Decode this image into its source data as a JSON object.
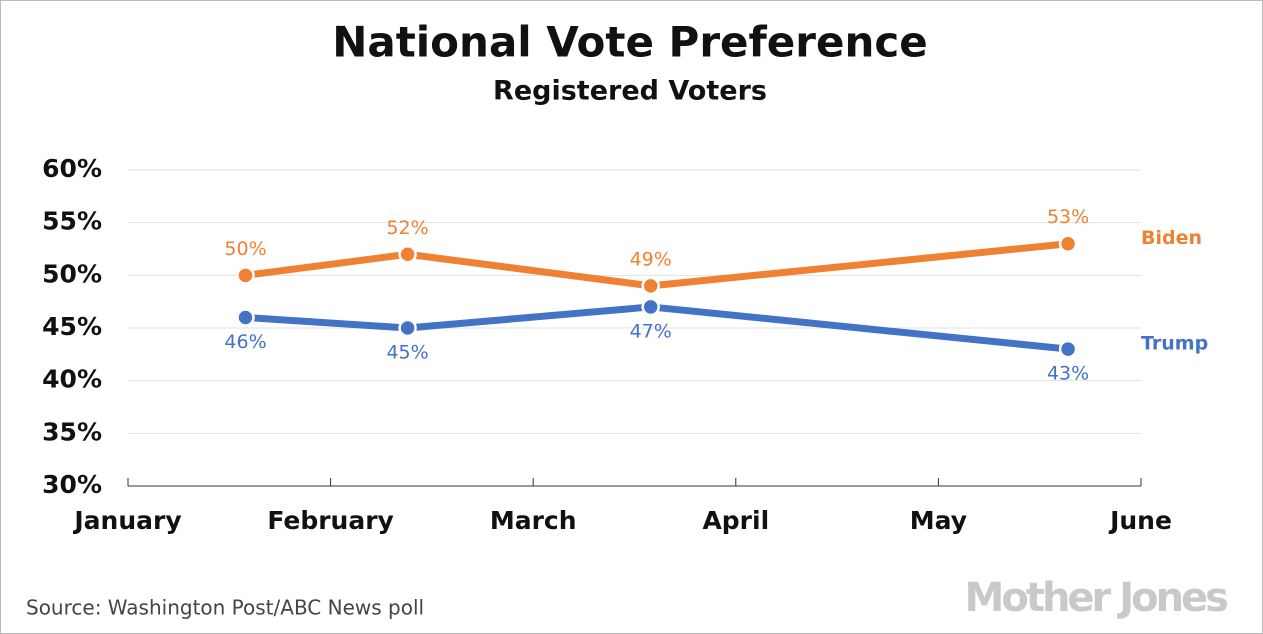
{
  "chart_data": {
    "type": "line",
    "title": "National Vote Preference",
    "subtitle": "Registered Voters",
    "x": [
      0.58,
      1.38,
      2.58,
      4.64
    ],
    "xlim": [
      0,
      5
    ],
    "xticks": [
      {
        "value": 0,
        "label": "January"
      },
      {
        "value": 1,
        "label": "February"
      },
      {
        "value": 2,
        "label": "March"
      },
      {
        "value": 3,
        "label": "April"
      },
      {
        "value": 4,
        "label": "May"
      },
      {
        "value": 5,
        "label": "June"
      }
    ],
    "ylim": [
      30,
      60
    ],
    "yticks": [
      {
        "value": 30,
        "label": "30%"
      },
      {
        "value": 35,
        "label": "35%"
      },
      {
        "value": 40,
        "label": "40%"
      },
      {
        "value": 45,
        "label": "45%"
      },
      {
        "value": 50,
        "label": "50%"
      },
      {
        "value": 55,
        "label": "55%"
      },
      {
        "value": 60,
        "label": "60%"
      }
    ],
    "grid": true,
    "series": [
      {
        "name": "Biden",
        "color": "#ef8133",
        "values": [
          50,
          52,
          49,
          53
        ],
        "value_labels": [
          "50%",
          "52%",
          "49%",
          "53%"
        ]
      },
      {
        "name": "Trump",
        "color": "#4472c4",
        "values": [
          46,
          45,
          47,
          43
        ],
        "value_labels": [
          "46%",
          "45%",
          "47%",
          "43%"
        ]
      }
    ],
    "source": "Source: Washington Post/ABC News poll",
    "logo": "Mother Jones"
  }
}
